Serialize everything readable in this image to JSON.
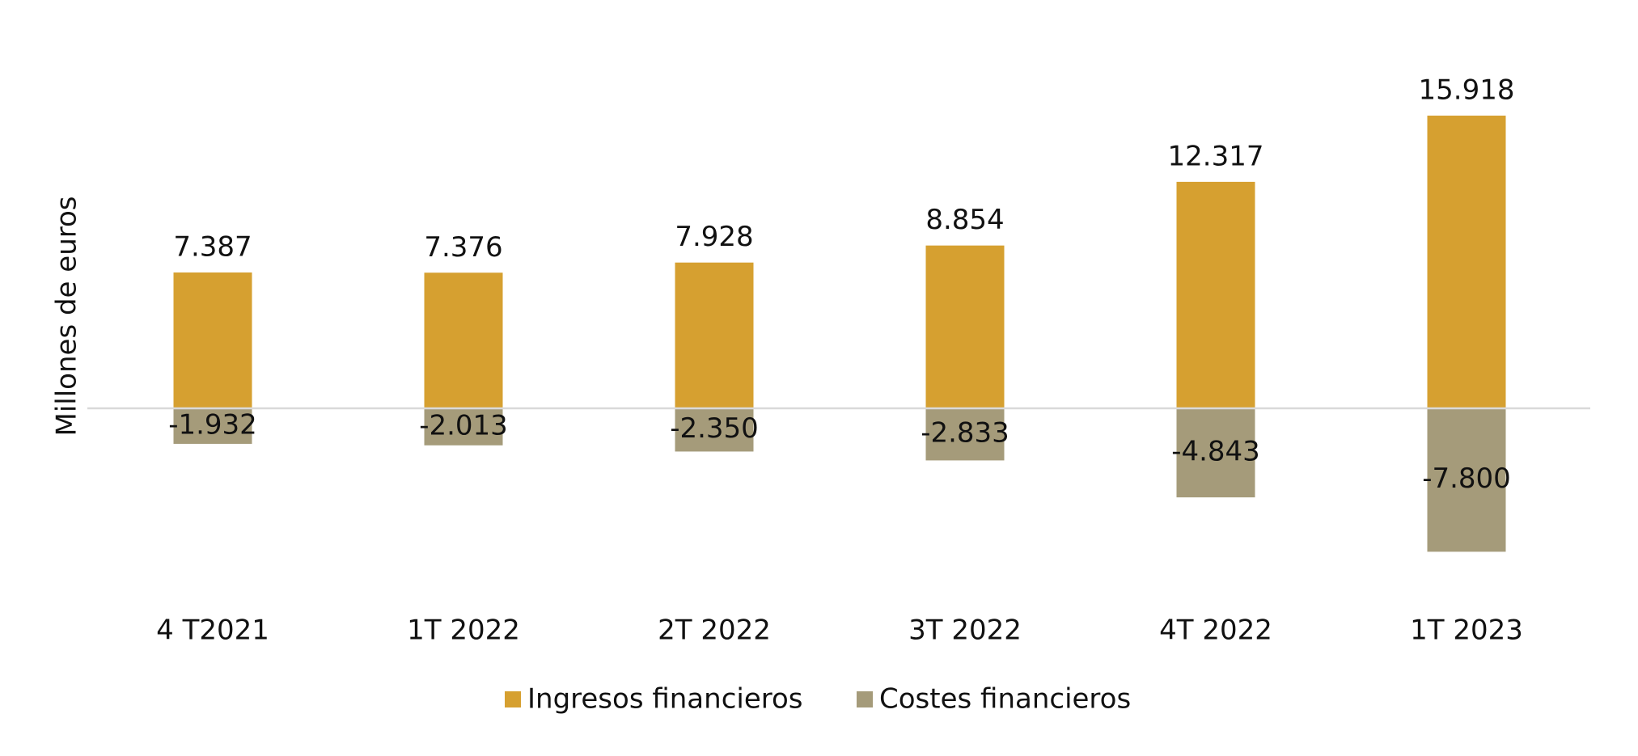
{
  "chart_data": {
    "type": "bar",
    "y_label": "Millones de euros",
    "categories": [
      "4 T2021",
      "1T 2022",
      "2T 2022",
      "3T 2022",
      "4T 2022",
      "1T 2023"
    ],
    "series": [
      {
        "name": "Ingresos financieros",
        "color": "#d6a030",
        "values": [
          7387,
          7376,
          7928,
          8854,
          12317,
          15918
        ],
        "value_labels": [
          "7.387",
          "7.376",
          "7.928",
          "8.854",
          "12.317",
          "15.918"
        ]
      },
      {
        "name": "Costes financieros",
        "color": "#a59b7a",
        "values": [
          -1932,
          -2013,
          -2350,
          -2833,
          -4843,
          -7800
        ],
        "value_labels": [
          "-1.932",
          "-2.013",
          "-2.350",
          "-2.833",
          "-4.843",
          "-7.800"
        ]
      }
    ]
  }
}
